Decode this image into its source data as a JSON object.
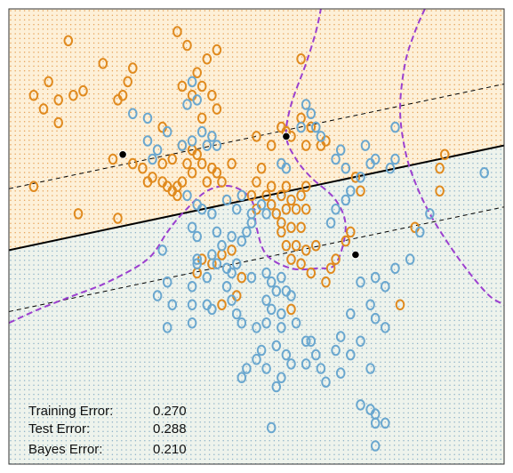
{
  "chart_data": {
    "type": "scatter",
    "title": "",
    "xlabel": "",
    "ylabel": "",
    "xlim": [
      0,
      1
    ],
    "ylim": [
      0,
      1
    ],
    "grid": false,
    "legend": "none",
    "colors": {
      "orange": "#e08a1e",
      "blue": "#6aa7cf",
      "orange_region": "#fdf0d8",
      "blue_region": "#eef3ec",
      "orange_dot": "#e6a35a",
      "blue_dot": "#8fb3c8",
      "bayes_boundary": "#9b3fcf",
      "svm_boundary": "#000000",
      "frame": "#333333"
    },
    "series": [
      {
        "class": "orange",
        "points": [
          [
            0.12,
            0.93
          ],
          [
            0.19,
            0.88
          ],
          [
            0.34,
            0.95
          ],
          [
            0.42,
            0.91
          ],
          [
            0.05,
            0.81
          ],
          [
            0.08,
            0.84
          ],
          [
            0.1,
            0.8
          ],
          [
            0.13,
            0.81
          ],
          [
            0.15,
            0.82
          ],
          [
            0.07,
            0.78
          ],
          [
            0.23,
            0.81
          ],
          [
            0.24,
            0.84
          ],
          [
            0.25,
            0.87
          ],
          [
            0.22,
            0.8
          ],
          [
            0.36,
            0.92
          ],
          [
            0.4,
            0.89
          ],
          [
            0.38,
            0.86
          ],
          [
            0.35,
            0.83
          ],
          [
            0.39,
            0.83
          ],
          [
            0.37,
            0.81
          ],
          [
            0.41,
            0.81
          ],
          [
            0.1,
            0.75
          ],
          [
            0.31,
            0.74
          ],
          [
            0.39,
            0.76
          ],
          [
            0.42,
            0.78
          ],
          [
            0.37,
            0.69
          ],
          [
            0.35,
            0.7
          ],
          [
            0.38,
            0.68
          ],
          [
            0.5,
            0.72
          ],
          [
            0.53,
            0.7
          ],
          [
            0.55,
            0.74
          ],
          [
            0.56,
            0.73
          ],
          [
            0.57,
            0.72
          ],
          [
            0.59,
            0.76
          ],
          [
            0.61,
            0.74
          ],
          [
            0.64,
            0.71
          ],
          [
            0.59,
            0.89
          ],
          [
            0.6,
            0.7
          ],
          [
            0.63,
            0.7
          ],
          [
            0.21,
            0.67
          ],
          [
            0.25,
            0.66
          ],
          [
            0.27,
            0.65
          ],
          [
            0.31,
            0.66
          ],
          [
            0.33,
            0.67
          ],
          [
            0.36,
            0.66
          ],
          [
            0.39,
            0.66
          ],
          [
            0.41,
            0.65
          ],
          [
            0.45,
            0.66
          ],
          [
            0.37,
            0.64
          ],
          [
            0.42,
            0.64
          ],
          [
            0.4,
            0.62
          ],
          [
            0.43,
            0.62
          ],
          [
            0.5,
            0.62
          ],
          [
            0.51,
            0.65
          ],
          [
            0.28,
            0.62
          ],
          [
            0.29,
            0.63
          ],
          [
            0.31,
            0.62
          ],
          [
            0.32,
            0.61
          ],
          [
            0.34,
            0.61
          ],
          [
            0.35,
            0.62
          ],
          [
            0.33,
            0.6
          ],
          [
            0.34,
            0.59
          ],
          [
            0.49,
            0.59
          ],
          [
            0.52,
            0.59
          ],
          [
            0.53,
            0.61
          ],
          [
            0.55,
            0.59
          ],
          [
            0.56,
            0.61
          ],
          [
            0.57,
            0.58
          ],
          [
            0.59,
            0.59
          ],
          [
            0.6,
            0.61
          ],
          [
            0.56,
            0.56
          ],
          [
            0.58,
            0.56
          ],
          [
            0.6,
            0.56
          ],
          [
            0.54,
            0.55
          ],
          [
            0.53,
            0.57
          ],
          [
            0.55,
            0.53
          ],
          [
            0.57,
            0.52
          ],
          [
            0.5,
            0.56
          ],
          [
            0.55,
            0.51
          ],
          [
            0.59,
            0.52
          ],
          [
            0.56,
            0.48
          ],
          [
            0.58,
            0.48
          ],
          [
            0.6,
            0.47
          ],
          [
            0.62,
            0.48
          ],
          [
            0.66,
            0.45
          ],
          [
            0.65,
            0.43
          ],
          [
            0.64,
            0.4
          ],
          [
            0.61,
            0.42
          ],
          [
            0.59,
            0.44
          ],
          [
            0.57,
            0.45
          ],
          [
            0.38,
            0.42
          ],
          [
            0.39,
            0.45
          ],
          [
            0.41,
            0.44
          ],
          [
            0.43,
            0.46
          ],
          [
            0.45,
            0.47
          ],
          [
            0.47,
            0.41
          ],
          [
            0.46,
            0.37
          ],
          [
            0.43,
            0.35
          ],
          [
            0.57,
            0.34
          ],
          [
            0.05,
            0.61
          ],
          [
            0.14,
            0.55
          ],
          [
            0.22,
            0.54
          ],
          [
            0.88,
            0.68
          ],
          [
            0.87,
            0.65
          ],
          [
            0.87,
            0.6
          ],
          [
            0.82,
            0.52
          ],
          [
            0.79,
            0.35
          ],
          [
            0.7,
            0.63
          ],
          [
            0.71,
            0.6
          ],
          [
            0.68,
            0.49
          ],
          [
            0.69,
            0.51
          ]
        ]
      },
      {
        "class": "blue",
        "points": [
          [
            0.37,
            0.84
          ],
          [
            0.38,
            0.8
          ],
          [
            0.36,
            0.79
          ],
          [
            0.32,
            0.73
          ],
          [
            0.25,
            0.77
          ],
          [
            0.28,
            0.76
          ],
          [
            0.41,
            0.72
          ],
          [
            0.39,
            0.73
          ],
          [
            0.37,
            0.71
          ],
          [
            0.35,
            0.7
          ],
          [
            0.28,
            0.71
          ],
          [
            0.3,
            0.69
          ],
          [
            0.29,
            0.67
          ],
          [
            0.4,
            0.7
          ],
          [
            0.42,
            0.7
          ],
          [
            0.6,
            0.79
          ],
          [
            0.61,
            0.77
          ],
          [
            0.59,
            0.74
          ],
          [
            0.62,
            0.74
          ],
          [
            0.63,
            0.72
          ],
          [
            0.78,
            0.74
          ],
          [
            0.67,
            0.69
          ],
          [
            0.66,
            0.67
          ],
          [
            0.68,
            0.65
          ],
          [
            0.72,
            0.7
          ],
          [
            0.73,
            0.66
          ],
          [
            0.74,
            0.67
          ],
          [
            0.78,
            0.67
          ],
          [
            0.71,
            0.63
          ],
          [
            0.69,
            0.6
          ],
          [
            0.68,
            0.58
          ],
          [
            0.66,
            0.56
          ],
          [
            0.65,
            0.53
          ],
          [
            0.77,
            0.65
          ],
          [
            0.96,
            0.64
          ],
          [
            0.56,
            0.65
          ],
          [
            0.55,
            0.66
          ],
          [
            0.36,
            0.59
          ],
          [
            0.38,
            0.57
          ],
          [
            0.39,
            0.56
          ],
          [
            0.41,
            0.55
          ],
          [
            0.44,
            0.58
          ],
          [
            0.46,
            0.56
          ],
          [
            0.47,
            0.59
          ],
          [
            0.49,
            0.55
          ],
          [
            0.51,
            0.57
          ],
          [
            0.52,
            0.55
          ],
          [
            0.48,
            0.51
          ],
          [
            0.49,
            0.53
          ],
          [
            0.37,
            0.52
          ],
          [
            0.38,
            0.5
          ],
          [
            0.42,
            0.51
          ],
          [
            0.43,
            0.48
          ],
          [
            0.45,
            0.5
          ],
          [
            0.47,
            0.49
          ],
          [
            0.41,
            0.46
          ],
          [
            0.42,
            0.44
          ],
          [
            0.44,
            0.43
          ],
          [
            0.45,
            0.42
          ],
          [
            0.46,
            0.44
          ],
          [
            0.44,
            0.39
          ],
          [
            0.45,
            0.36
          ],
          [
            0.49,
            0.41
          ],
          [
            0.52,
            0.42
          ],
          [
            0.53,
            0.4
          ],
          [
            0.55,
            0.41
          ],
          [
            0.54,
            0.38
          ],
          [
            0.56,
            0.38
          ],
          [
            0.57,
            0.37
          ],
          [
            0.52,
            0.36
          ],
          [
            0.53,
            0.34
          ],
          [
            0.5,
            0.3
          ],
          [
            0.55,
            0.3
          ],
          [
            0.31,
            0.47
          ],
          [
            0.38,
            0.45
          ],
          [
            0.4,
            0.41
          ],
          [
            0.32,
            0.4
          ],
          [
            0.37,
            0.35
          ],
          [
            0.41,
            0.34
          ],
          [
            0.46,
            0.33
          ],
          [
            0.47,
            0.31
          ],
          [
            0.52,
            0.31
          ],
          [
            0.55,
            0.33
          ],
          [
            0.58,
            0.31
          ],
          [
            0.6,
            0.27
          ],
          [
            0.61,
            0.27
          ],
          [
            0.67,
            0.28
          ],
          [
            0.69,
            0.33
          ],
          [
            0.71,
            0.4
          ],
          [
            0.73,
            0.35
          ],
          [
            0.74,
            0.32
          ],
          [
            0.74,
            0.41
          ],
          [
            0.78,
            0.43
          ],
          [
            0.76,
            0.39
          ],
          [
            0.81,
            0.45
          ],
          [
            0.83,
            0.51
          ],
          [
            0.85,
            0.55
          ],
          [
            0.76,
            0.3
          ],
          [
            0.71,
            0.27
          ],
          [
            0.73,
            0.21
          ],
          [
            0.69,
            0.24
          ],
          [
            0.66,
            0.25
          ],
          [
            0.62,
            0.24
          ],
          [
            0.6,
            0.22
          ],
          [
            0.57,
            0.22
          ],
          [
            0.52,
            0.21
          ],
          [
            0.5,
            0.23
          ],
          [
            0.51,
            0.25
          ],
          [
            0.54,
            0.26
          ],
          [
            0.56,
            0.24
          ],
          [
            0.48,
            0.21
          ],
          [
            0.47,
            0.19
          ],
          [
            0.55,
            0.19
          ],
          [
            0.54,
            0.17
          ],
          [
            0.63,
            0.21
          ],
          [
            0.64,
            0.18
          ],
          [
            0.67,
            0.2
          ],
          [
            0.71,
            0.13
          ],
          [
            0.73,
            0.12
          ],
          [
            0.74,
            0.11
          ],
          [
            0.74,
            0.09
          ],
          [
            0.76,
            0.09
          ],
          [
            0.53,
            0.08
          ],
          [
            0.74,
            0.04
          ],
          [
            0.4,
            0.35
          ],
          [
            0.37,
            0.31
          ],
          [
            0.3,
            0.37
          ],
          [
            0.33,
            0.35
          ],
          [
            0.32,
            0.3
          ],
          [
            0.37,
            0.39
          ],
          [
            0.38,
            0.44
          ]
        ]
      }
    ],
    "support_points": [
      [
        0.23,
        0.68
      ],
      [
        0.56,
        0.72
      ],
      [
        0.7,
        0.46
      ]
    ],
    "boundaries": {
      "svm": {
        "intercept": 0.47,
        "slope": 0.23
      },
      "margin_offset": 0.135,
      "bayes_left": [
        [
          0.0,
          0.31
        ],
        [
          0.06,
          0.34
        ],
        [
          0.13,
          0.37
        ],
        [
          0.2,
          0.4
        ],
        [
          0.28,
          0.45
        ],
        [
          0.32,
          0.51
        ],
        [
          0.35,
          0.55
        ],
        [
          0.4,
          0.6
        ],
        [
          0.45,
          0.61
        ],
        [
          0.49,
          0.58
        ],
        [
          0.5,
          0.52
        ],
        [
          0.52,
          0.46
        ],
        [
          0.57,
          0.43
        ],
        [
          0.62,
          0.43
        ],
        [
          0.66,
          0.44
        ],
        [
          0.68,
          0.52
        ],
        [
          0.66,
          0.58
        ],
        [
          0.61,
          0.63
        ],
        [
          0.58,
          0.67
        ],
        [
          0.56,
          0.72
        ],
        [
          0.57,
          0.79
        ],
        [
          0.6,
          0.88
        ],
        [
          0.62,
          0.95
        ],
        [
          0.63,
          1.0
        ]
      ],
      "bayes_right": [
        [
          0.84,
          1.0
        ],
        [
          0.82,
          0.95
        ],
        [
          0.8,
          0.88
        ],
        [
          0.79,
          0.78
        ],
        [
          0.8,
          0.69
        ],
        [
          0.82,
          0.62
        ],
        [
          0.85,
          0.55
        ],
        [
          0.89,
          0.48
        ],
        [
          0.93,
          0.42
        ],
        [
          0.97,
          0.37
        ],
        [
          1.0,
          0.35
        ]
      ]
    },
    "errors": [
      {
        "label": "Training Error:",
        "value": "0.270"
      },
      {
        "label": "Test Error:",
        "value": "0.288"
      },
      {
        "label": "Bayes Error:",
        "value": "0.210"
      }
    ]
  }
}
